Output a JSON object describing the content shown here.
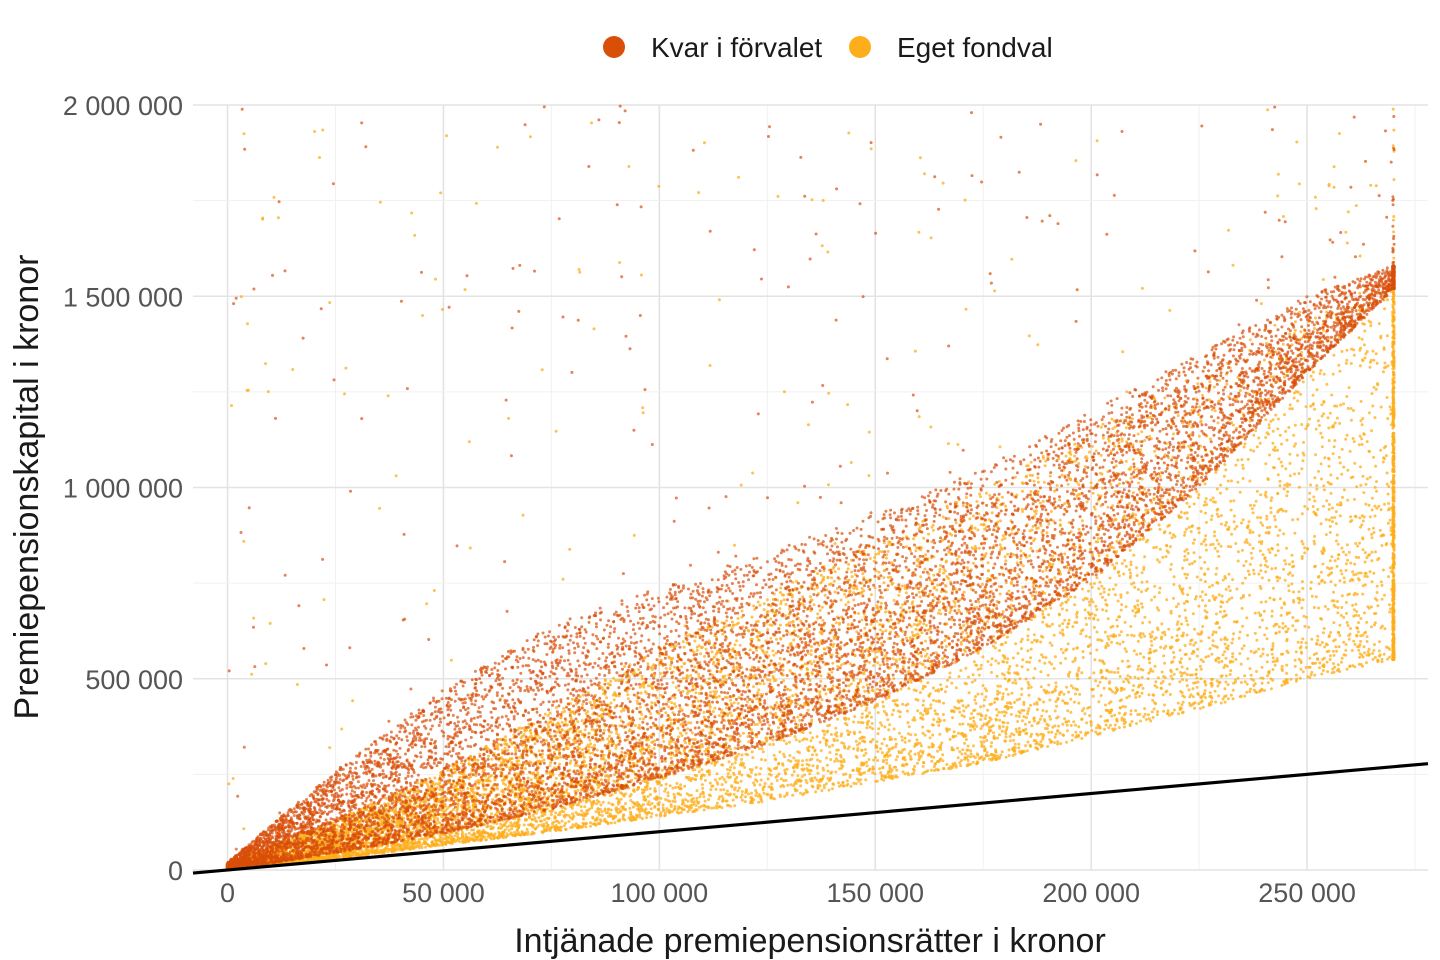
{
  "chart_data": {
    "type": "scatter",
    "title": "",
    "xlabel": "Intjänade premiepensionsrätter i kronor",
    "ylabel": "Premiepensionskapital i kronor",
    "xlim": [
      -8000,
      278000
    ],
    "ylim": [
      0,
      2000000
    ],
    "x_ticks": [
      0,
      50000,
      100000,
      150000,
      200000,
      250000
    ],
    "x_tick_labels": [
      "0",
      "50 000",
      "100 000",
      "150 000",
      "200 000",
      "250 000"
    ],
    "y_ticks": [
      0,
      500000,
      1000000,
      1500000,
      2000000
    ],
    "y_tick_labels": [
      "0",
      "500 000",
      "1 000 000",
      "1 500 000",
      "2 000 000"
    ],
    "grid": true,
    "legend_position": "top",
    "series": [
      {
        "name": "Kvar i förvalet",
        "color": "#d94f0a",
        "shape": "point",
        "envelope_x": [
          0,
          25000,
          50000,
          75000,
          100000,
          125000,
          150000,
          175000,
          200000,
          225000,
          250000,
          270000
        ],
        "envelope_low": [
          0,
          45000,
          95000,
          160000,
          240000,
          330000,
          440000,
          580000,
          760000,
          1000000,
          1300000,
          1520000
        ],
        "envelope_high": [
          20000,
          260000,
          470000,
          640000,
          740000,
          830000,
          930000,
          1050000,
          1200000,
          1350000,
          1500000,
          1580000
        ],
        "point_count": 11000
      },
      {
        "name": "Eget fondval",
        "color": "#fdae1a",
        "shape": "point",
        "envelope_x": [
          0,
          25000,
          50000,
          75000,
          100000,
          125000,
          150000,
          175000,
          200000,
          225000,
          250000,
          270000
        ],
        "envelope_low": [
          0,
          30000,
          65000,
          100000,
          140000,
          180000,
          230000,
          280000,
          350000,
          420000,
          500000,
          550000
        ],
        "envelope_high": [
          15000,
          130000,
          260000,
          420000,
          580000,
          720000,
          860000,
          1000000,
          1150000,
          1300000,
          1450000,
          1550000
        ],
        "point_count": 11000
      },
      {
        "name": "",
        "color": "#000000",
        "shape": "line",
        "x": [
          -8000,
          278000
        ],
        "y": [
          -8000,
          278000
        ]
      }
    ]
  }
}
